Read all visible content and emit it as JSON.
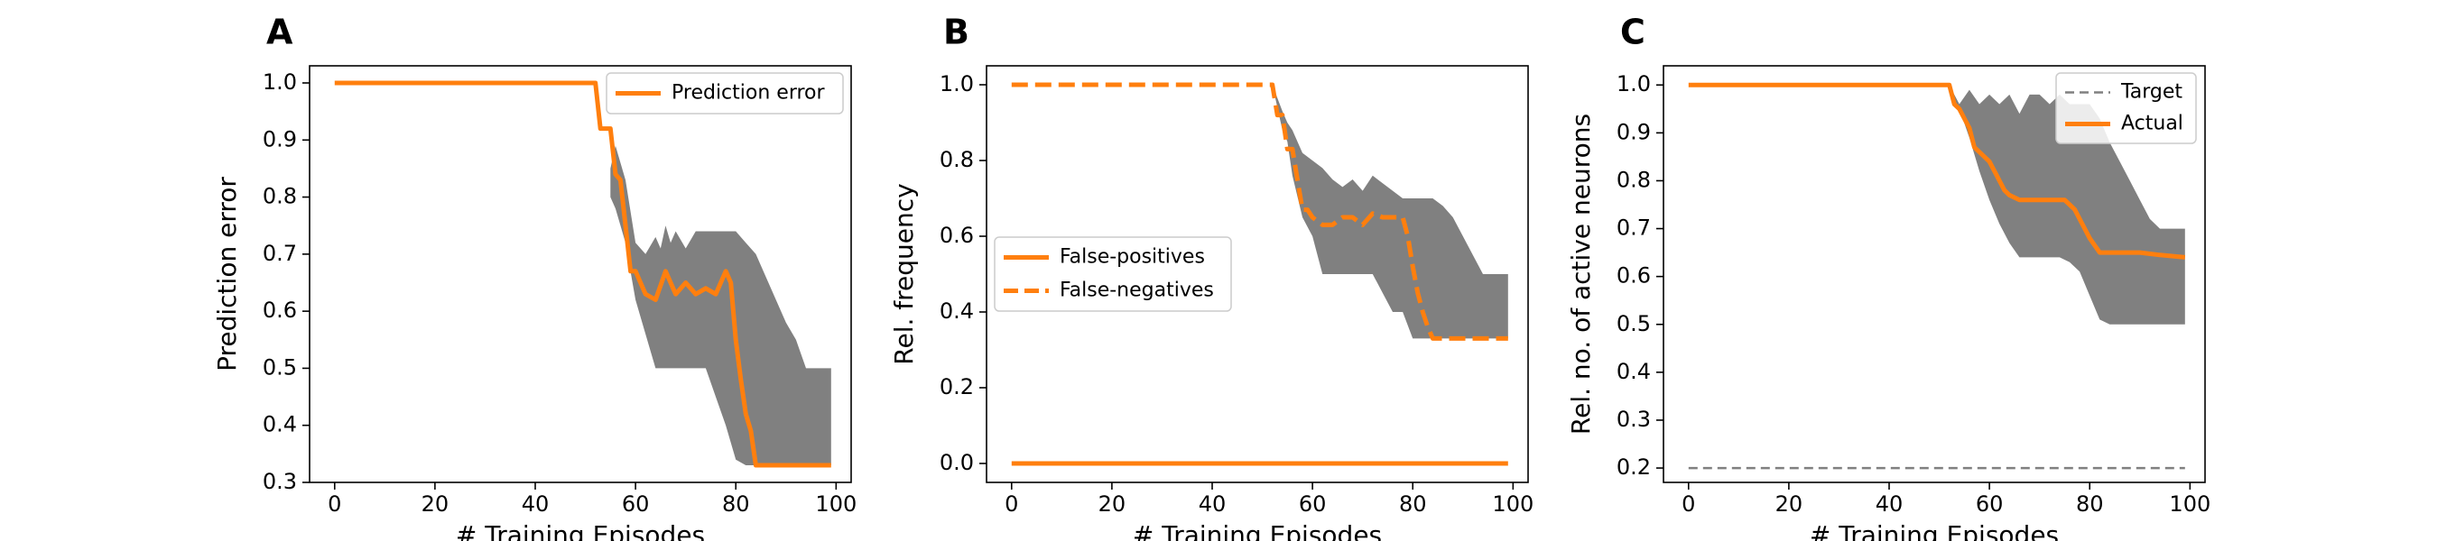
{
  "chart_data": [
    {
      "type": "line",
      "panel_label": "A",
      "xlabel": "# Training Episodes",
      "ylabel": "Prediction error",
      "xlim": [
        -5,
        103
      ],
      "ylim": [
        0.3,
        1.03
      ],
      "xticks": [
        0,
        20,
        40,
        60,
        80,
        100
      ],
      "yticks": [
        0.3,
        0.4,
        0.5,
        0.6,
        0.7,
        0.8,
        0.9,
        1.0
      ],
      "ytick_labels": [
        "0.3",
        "0.4",
        "0.5",
        "0.6",
        "0.7",
        "0.8",
        "0.9",
        "1.0"
      ],
      "legend_placement": "top-right",
      "band": {
        "x": [
          55,
          56,
          58,
          60,
          62,
          64,
          65,
          66,
          67,
          68,
          70,
          72,
          74,
          76,
          78,
          80,
          82,
          84,
          86,
          88,
          90,
          92,
          94,
          96,
          99
        ],
        "upper": [
          0.85,
          0.89,
          0.83,
          0.72,
          0.7,
          0.73,
          0.71,
          0.75,
          0.72,
          0.74,
          0.71,
          0.74,
          0.74,
          0.74,
          0.74,
          0.74,
          0.72,
          0.7,
          0.66,
          0.62,
          0.58,
          0.55,
          0.5,
          0.5,
          0.5
        ],
        "lower": [
          0.8,
          0.78,
          0.72,
          0.62,
          0.56,
          0.5,
          0.5,
          0.5,
          0.5,
          0.5,
          0.5,
          0.5,
          0.5,
          0.45,
          0.4,
          0.34,
          0.33,
          0.33,
          0.33,
          0.33,
          0.33,
          0.33,
          0.33,
          0.33,
          0.33
        ]
      },
      "series": [
        {
          "name": "Prediction error",
          "style": "solid",
          "color": "#ff7f0e",
          "x": [
            0,
            52,
            53,
            54,
            55,
            56,
            57,
            58,
            59,
            60,
            62,
            64,
            66,
            68,
            70,
            72,
            74,
            76,
            78,
            79,
            80,
            81,
            82,
            83,
            84,
            86,
            99
          ],
          "y": [
            1.0,
            1.0,
            0.92,
            0.92,
            0.92,
            0.84,
            0.83,
            0.75,
            0.67,
            0.67,
            0.63,
            0.62,
            0.67,
            0.63,
            0.65,
            0.63,
            0.64,
            0.63,
            0.67,
            0.65,
            0.55,
            0.48,
            0.42,
            0.39,
            0.33,
            0.33,
            0.33
          ]
        }
      ]
    },
    {
      "type": "line",
      "panel_label": "B",
      "xlabel": "# Training Episodes",
      "ylabel": "Rel. frequency",
      "xlim": [
        -5,
        103
      ],
      "ylim": [
        -0.05,
        1.05
      ],
      "xticks": [
        0,
        20,
        40,
        60,
        80,
        100
      ],
      "yticks": [
        0.0,
        0.2,
        0.4,
        0.6,
        0.8,
        1.0
      ],
      "ytick_labels": [
        "0.0",
        "0.2",
        "0.4",
        "0.6",
        "0.8",
        "1.0"
      ],
      "legend_placement": "center-left",
      "band": {
        "x": [
          52,
          54,
          55,
          56,
          58,
          60,
          62,
          64,
          66,
          68,
          70,
          72,
          74,
          76,
          78,
          80,
          82,
          84,
          86,
          88,
          90,
          92,
          94,
          96,
          99
        ],
        "upper": [
          1.0,
          0.93,
          0.9,
          0.88,
          0.82,
          0.8,
          0.78,
          0.75,
          0.73,
          0.75,
          0.72,
          0.76,
          0.74,
          0.72,
          0.7,
          0.7,
          0.7,
          0.7,
          0.68,
          0.65,
          0.6,
          0.55,
          0.5,
          0.5,
          0.5
        ],
        "lower": [
          1.0,
          0.88,
          0.85,
          0.76,
          0.65,
          0.6,
          0.5,
          0.5,
          0.5,
          0.5,
          0.5,
          0.5,
          0.45,
          0.4,
          0.4,
          0.33,
          0.33,
          0.33,
          0.33,
          0.33,
          0.33,
          0.33,
          0.33,
          0.33,
          0.33
        ]
      },
      "series": [
        {
          "name": "False-positives",
          "style": "solid",
          "color": "#ff7f0e",
          "x": [
            0,
            99
          ],
          "y": [
            0.0,
            0.0
          ]
        },
        {
          "name": "False-negatives",
          "style": "dashed",
          "color": "#ff7f0e",
          "x": [
            0,
            52,
            53,
            54,
            55,
            56,
            57,
            58,
            59,
            60,
            62,
            64,
            66,
            68,
            70,
            72,
            74,
            76,
            78,
            79,
            80,
            81,
            82,
            83,
            84,
            86,
            99
          ],
          "y": [
            1.0,
            1.0,
            0.92,
            0.92,
            0.83,
            0.83,
            0.75,
            0.67,
            0.67,
            0.65,
            0.63,
            0.63,
            0.65,
            0.65,
            0.63,
            0.66,
            0.65,
            0.65,
            0.65,
            0.6,
            0.52,
            0.45,
            0.4,
            0.36,
            0.33,
            0.33,
            0.33
          ]
        }
      ]
    },
    {
      "type": "line",
      "panel_label": "C",
      "xlabel": "# Training Episodes",
      "ylabel": "Rel. no. of active neurons",
      "xlim": [
        -5,
        103
      ],
      "ylim": [
        0.17,
        1.04
      ],
      "xticks": [
        0,
        20,
        40,
        60,
        80,
        100
      ],
      "yticks": [
        0.2,
        0.3,
        0.4,
        0.5,
        0.6,
        0.7,
        0.8,
        0.9,
        1.0
      ],
      "ytick_labels": [
        "0.2",
        "0.3",
        "0.4",
        "0.5",
        "0.6",
        "0.7",
        "0.8",
        "0.9",
        "1.0"
      ],
      "legend_placement": "top-right",
      "band": {
        "x": [
          52,
          53,
          54,
          56,
          58,
          60,
          62,
          64,
          66,
          68,
          70,
          72,
          74,
          76,
          78,
          80,
          82,
          84,
          86,
          88,
          90,
          92,
          94,
          96,
          99
        ],
        "upper": [
          1.0,
          0.98,
          0.96,
          0.99,
          0.96,
          0.98,
          0.96,
          0.98,
          0.94,
          0.98,
          0.98,
          0.96,
          0.98,
          0.96,
          0.96,
          0.96,
          0.93,
          0.88,
          0.84,
          0.8,
          0.76,
          0.72,
          0.7,
          0.7,
          0.7
        ],
        "lower": [
          1.0,
          0.97,
          0.95,
          0.89,
          0.82,
          0.76,
          0.71,
          0.67,
          0.64,
          0.64,
          0.64,
          0.64,
          0.64,
          0.63,
          0.61,
          0.56,
          0.51,
          0.5,
          0.5,
          0.5,
          0.5,
          0.5,
          0.5,
          0.5,
          0.5
        ]
      },
      "series": [
        {
          "name": "Target",
          "style": "dashed-gray",
          "color": "#808080",
          "x": [
            0,
            99
          ],
          "y": [
            0.2,
            0.2
          ]
        },
        {
          "name": "Actual",
          "style": "solid",
          "color": "#ff7f0e",
          "x": [
            0,
            52,
            53,
            54,
            55,
            56,
            57,
            58,
            59,
            60,
            61,
            62,
            63,
            64,
            66,
            68,
            70,
            72,
            74,
            75,
            76,
            77,
            78,
            79,
            80,
            82,
            86,
            90,
            94,
            99
          ],
          "y": [
            1.0,
            1.0,
            0.96,
            0.95,
            0.93,
            0.91,
            0.87,
            0.86,
            0.85,
            0.84,
            0.82,
            0.8,
            0.78,
            0.77,
            0.76,
            0.76,
            0.76,
            0.76,
            0.76,
            0.76,
            0.75,
            0.74,
            0.72,
            0.7,
            0.68,
            0.65,
            0.65,
            0.65,
            0.645,
            0.64
          ]
        }
      ]
    }
  ]
}
